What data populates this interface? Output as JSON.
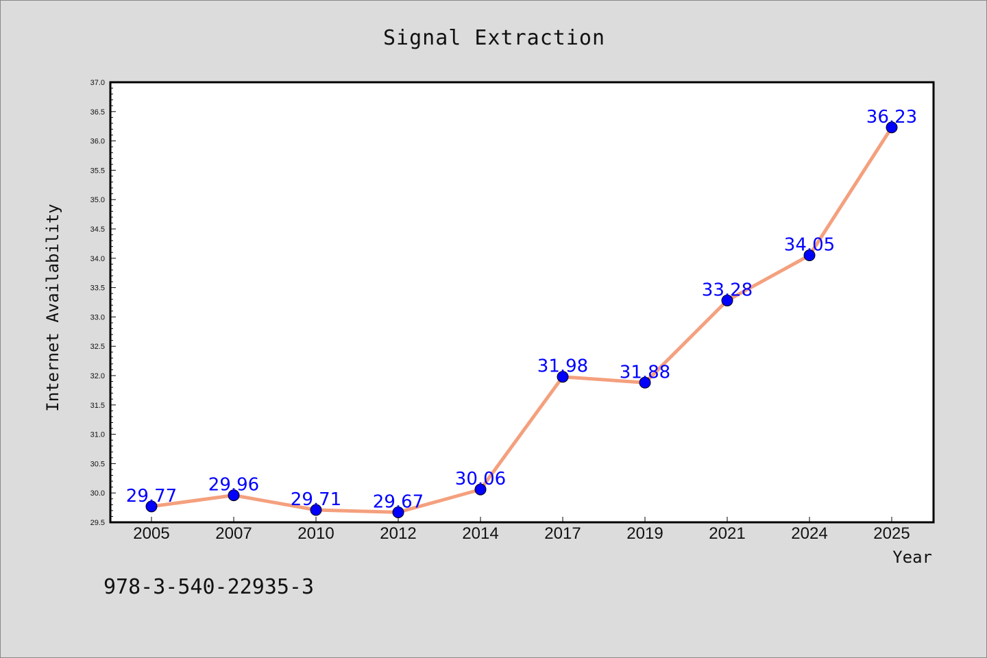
{
  "chart_data": {
    "type": "line",
    "title": "Signal Extraction",
    "xlabel": "Year",
    "ylabel": "Internet Availability",
    "categories": [
      "2005",
      "2007",
      "2010",
      "2012",
      "2014",
      "2017",
      "2019",
      "2021",
      "2024",
      "2025"
    ],
    "series": [
      {
        "values": [
          29.77,
          29.96,
          29.71,
          29.67,
          30.06,
          31.98,
          31.88,
          33.28,
          34.05,
          36.23
        ],
        "line_color": "#f4a07e",
        "marker_color": "#0000ff"
      }
    ],
    "ylim": [
      29.5,
      37.0
    ],
    "yticks": [
      "29.5",
      "30.0",
      "30.5",
      "31.0",
      "31.5",
      "32.0",
      "32.5",
      "33.0",
      "33.5",
      "34.0",
      "34.5",
      "35.0",
      "35.5",
      "36.0",
      "36.5",
      "37.0"
    ],
    "ytick_values": [
      29.5,
      30.0,
      30.5,
      31.0,
      31.5,
      32.0,
      32.5,
      33.0,
      33.5,
      34.0,
      34.5,
      35.0,
      35.5,
      36.0,
      36.5,
      37.0
    ],
    "data_labels": [
      "29.77",
      "29.96",
      "29.71",
      "29.67",
      "30.06",
      "31.98",
      "31.88",
      "33.28",
      "34.05",
      "36.23"
    ],
    "grid": false,
    "legend": "none",
    "annotation": "978-3-540-22935-3",
    "background_color": "#dcdcdc",
    "plot_background_color": "#ffffff"
  }
}
